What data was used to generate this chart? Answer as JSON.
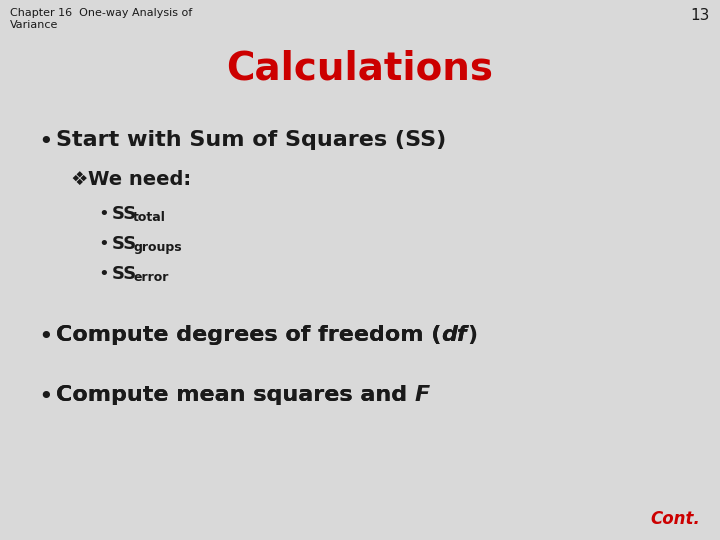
{
  "background_color": "#d9d9d9",
  "header_text_line1": "Chapter 16  One-way Analysis of",
  "header_text_line2": "Variance",
  "page_number": "13",
  "title": "Calculations",
  "title_color": "#cc0000",
  "title_fontsize": 28,
  "header_fontsize": 8,
  "page_num_fontsize": 11,
  "text_color": "#1a1a1a",
  "red_color": "#cc0000",
  "cont_text": "Cont.",
  "bullet1": "Start with Sum of Squares (SS)",
  "sub_bullet_symbol": "❁",
  "sub_bullet_label": "We need:",
  "sub_subscripts": [
    "total",
    "groups",
    "error"
  ],
  "main_fontsize": 16,
  "sub_label_fontsize": 14,
  "sub_item_fontsize": 13,
  "subscript_fontsize": 9,
  "cont_fontsize": 12
}
